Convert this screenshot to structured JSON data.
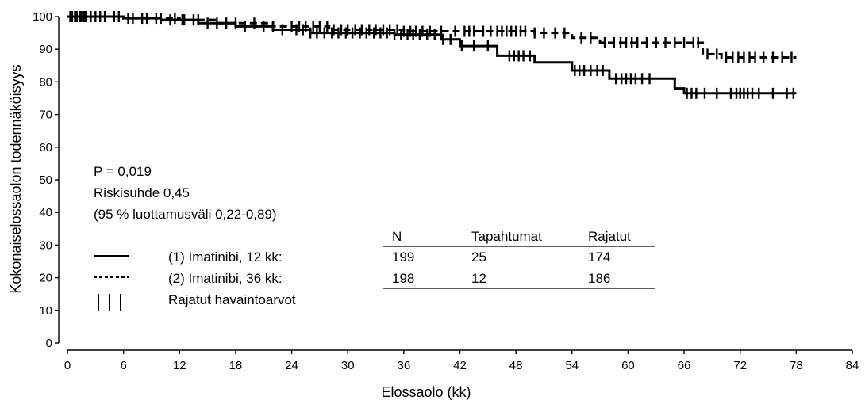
{
  "chart_data": {
    "type": "line",
    "title": "",
    "xlabel": "Elossaolo (kk)",
    "ylabel": "Kokonaiselossaolon todennäköisyys",
    "xlim": [
      0,
      84
    ],
    "ylim": [
      0,
      100
    ],
    "x_ticks": [
      0,
      6,
      12,
      18,
      24,
      30,
      36,
      42,
      48,
      54,
      60,
      66,
      72,
      78,
      84
    ],
    "y_ticks": [
      0,
      10,
      20,
      30,
      40,
      50,
      60,
      70,
      80,
      90,
      100
    ],
    "grid": false,
    "series": [
      {
        "name": "(1) Imatinibi, 12 kk:",
        "line_style": "solid",
        "steps": [
          [
            0,
            100
          ],
          [
            6,
            99.5
          ],
          [
            10,
            99
          ],
          [
            14,
            98
          ],
          [
            18,
            97
          ],
          [
            22,
            96
          ],
          [
            26,
            95
          ],
          [
            35,
            94.5
          ],
          [
            40,
            93
          ],
          [
            42,
            91
          ],
          [
            46,
            88
          ],
          [
            50,
            86
          ],
          [
            54,
            83.5
          ],
          [
            58,
            81
          ],
          [
            65,
            78
          ],
          [
            66,
            76.5
          ],
          [
            78,
            76.5
          ]
        ],
        "censor_times": [
          0.3,
          0.8,
          1.3,
          1.8,
          2.5,
          3.5,
          5,
          6.5,
          8,
          9.5,
          11,
          12.3,
          13.5,
          15,
          17,
          19,
          21,
          23,
          24.5,
          25.2,
          26,
          26.7,
          27.5,
          28.3,
          29,
          29.8,
          30.5,
          31.3,
          32,
          32.8,
          33.5,
          34.2,
          35,
          35.7,
          36.4,
          37,
          37.7,
          38.5,
          39.3,
          40.2,
          41,
          42.2,
          43.5,
          45,
          47.3,
          47.8,
          48.3,
          48.8,
          49.5,
          54.3,
          54.8,
          55.3,
          56,
          56.7,
          57.3,
          58.7,
          59.3,
          59.8,
          60.3,
          60.8,
          61.5,
          62.3,
          66.3,
          66.8,
          67.3,
          68.2,
          69.5,
          71,
          71.6,
          72,
          72.4,
          72.8,
          73.3,
          74,
          75.5,
          77,
          77.7
        ]
      },
      {
        "name": "(2) Imatinibi, 36 kk:",
        "line_style": "dashed",
        "steps": [
          [
            0,
            100
          ],
          [
            6,
            99.5
          ],
          [
            12,
            99
          ],
          [
            16,
            98
          ],
          [
            22,
            97
          ],
          [
            28,
            96
          ],
          [
            36,
            95.5
          ],
          [
            44,
            95.5
          ],
          [
            50,
            95
          ],
          [
            54,
            93.5
          ],
          [
            57,
            92
          ],
          [
            65,
            92
          ],
          [
            68,
            88.5
          ],
          [
            70,
            87.5
          ],
          [
            78,
            87.5
          ]
        ],
        "censor_times": [
          0.5,
          1,
          1.5,
          2,
          3,
          4,
          5.5,
          7,
          8.5,
          10,
          11.5,
          12.5,
          14,
          16,
          18,
          20,
          22,
          24,
          24.8,
          25.5,
          26.3,
          27,
          27.8,
          28.5,
          29.3,
          30,
          30.8,
          31.5,
          32.3,
          33,
          33.8,
          34.5,
          35.3,
          36,
          36.7,
          37.3,
          38,
          38.8,
          40,
          41.5,
          42.5,
          43,
          43.5,
          44.5,
          45.3,
          46,
          46.5,
          47,
          47.5,
          48,
          48.5,
          49,
          50,
          51,
          52.2,
          53.2,
          55,
          56,
          57.5,
          58.5,
          59.2,
          59.8,
          60.4,
          61,
          62,
          63,
          64,
          65,
          66,
          67,
          67.5,
          68.5,
          69.5,
          70.5,
          71.2,
          71.8,
          72.4,
          73,
          73.6,
          74.5,
          75.5,
          76.5,
          77.5
        ]
      }
    ],
    "annotations": {
      "stats": [
        "P = 0,019",
        "Riskisuhde 0,45",
        "(95 % luottamusväli 0,22-0,89)"
      ],
      "legend_censored_label": "Rajatut havaintoarvot",
      "table": {
        "headers": [
          "N",
          "Tapahtumat",
          "Rajatut"
        ],
        "rows": [
          [
            "199",
            "25",
            "174"
          ],
          [
            "198",
            "12",
            "186"
          ]
        ]
      }
    }
  }
}
